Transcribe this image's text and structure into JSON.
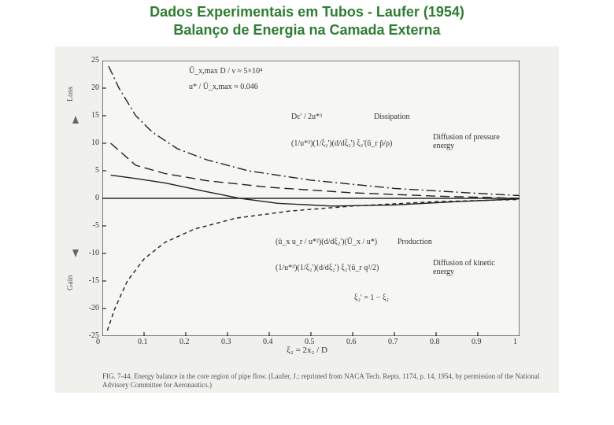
{
  "title_line1": "Dados Experimentais em Tubos - Laufer (1954)",
  "title_line2": "Balanço de Energia na Camada Externa",
  "chart": {
    "type": "line",
    "xlim": [
      0,
      1.0
    ],
    "ylim": [
      -25,
      25
    ],
    "xticks": [
      0,
      0.1,
      0.2,
      0.3,
      0.4,
      0.5,
      0.6,
      0.7,
      0.8,
      0.9,
      1.0
    ],
    "yticks": [
      -25,
      -20,
      -15,
      -10,
      -5,
      0,
      5,
      10,
      15,
      20,
      25
    ],
    "xlabel": "ξ₂ = 2x₂ / D",
    "ylabel_top": "Loss",
    "ylabel_bot": "Gain",
    "background_color": "#f6f6f3",
    "axis_color": "#000000",
    "curve_color": "#222222",
    "series": {
      "dissipation": {
        "style": "dash-dot",
        "points": [
          [
            0.015,
            24
          ],
          [
            0.04,
            20
          ],
          [
            0.08,
            15
          ],
          [
            0.12,
            12
          ],
          [
            0.18,
            9
          ],
          [
            0.25,
            7
          ],
          [
            0.35,
            5
          ],
          [
            0.5,
            3.3
          ],
          [
            0.7,
            1.8
          ],
          [
            0.9,
            0.9
          ],
          [
            1.0,
            0.5
          ]
        ]
      },
      "diffusion_pressure": {
        "style": "long-dash",
        "points": [
          [
            0.02,
            10
          ],
          [
            0.08,
            6
          ],
          [
            0.15,
            4.5
          ],
          [
            0.25,
            3.2
          ],
          [
            0.4,
            2
          ],
          [
            0.6,
            1
          ],
          [
            0.8,
            0.4
          ],
          [
            1.0,
            0
          ]
        ]
      },
      "production": {
        "style": "short-dash",
        "points": [
          [
            0.012,
            -24
          ],
          [
            0.03,
            -20
          ],
          [
            0.06,
            -15
          ],
          [
            0.1,
            -11
          ],
          [
            0.15,
            -8
          ],
          [
            0.22,
            -5.6
          ],
          [
            0.32,
            -3.6
          ],
          [
            0.45,
            -2.3
          ],
          [
            0.6,
            -1.4
          ],
          [
            0.8,
            -0.6
          ],
          [
            1.0,
            -0.2
          ]
        ]
      },
      "diffusion_kinetic": {
        "style": "solid",
        "points": [
          [
            0.02,
            4.2
          ],
          [
            0.08,
            3.6
          ],
          [
            0.15,
            2.8
          ],
          [
            0.25,
            1.2
          ],
          [
            0.33,
            0
          ],
          [
            0.42,
            -0.9
          ],
          [
            0.55,
            -1.4
          ],
          [
            0.7,
            -1.2
          ],
          [
            0.85,
            -0.6
          ],
          [
            1.0,
            -0.1
          ]
        ]
      }
    },
    "annotations": {
      "re_text": "Ū_x,max D / ν  ≈ 5×10⁴",
      "ratio_text": "u* / Ū_x,max ≈ 0.046",
      "xi_prime": "ξ₂' = 1 − ξ₂",
      "dissipation_label": "Dissipation",
      "dissipation_formula": "Dε' / 2u*³",
      "diff_press_label": "Diffusion of pressure energy",
      "diff_press_formula": "(1/u*³)(1/ξ₂')(d/dξ₂') ξ₂'(ū_r p̄/ρ)",
      "production_label": "Production",
      "production_formula": "(ū_x u_r / u*²)(d/dξ₂')(Ū_x / u*)",
      "diff_kin_label": "Diffusion of kinetic energy",
      "diff_kin_formula": "(1/u*³)(1/ξ₂')(d/dξ₂') ξ₂'(ū_r q²/2)"
    }
  },
  "caption": "FIG. 7-44. Energy balance in the core region of pipe flow. (Laufer, J.; reprinted from NACA Tech. Repts. 1174, p. 14, 1954, by permission of the National Advisory Committee for Aeronautics.)"
}
